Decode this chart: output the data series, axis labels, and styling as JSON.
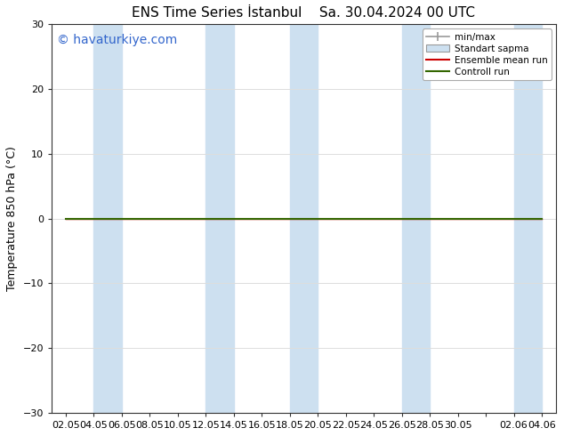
{
  "title_left": "ENS Time Series İstanbul",
  "title_right": "Sa. 30.04.2024 00 UTC",
  "ylabel": "Temperature 850 hPa (°C)",
  "watermark": "© havaturkiye.com",
  "ylim": [
    -30,
    30
  ],
  "yticks": [
    -30,
    -20,
    -10,
    0,
    10,
    20,
    30
  ],
  "xtick_labels": [
    "02.05",
    "04.05",
    "06.05",
    "08.05",
    "10.05",
    "12.05",
    "14.05",
    "16.05",
    "18.05",
    "20.05",
    "22.05",
    "24.05",
    "26.05",
    "28.05",
    "30.05",
    "",
    "02.06",
    "04.06"
  ],
  "background_color": "#ffffff",
  "plot_bg_color": "#ffffff",
  "shaded_band_color": "#cde0f0",
  "control_run_color": "#336600",
  "ensemble_mean_color": "#cc0000",
  "min_max_color": "#999999",
  "legend_labels": [
    "min/max",
    "Standart sapma",
    "Ensemble mean run",
    "Controll run"
  ],
  "shaded_ranges": [
    [
      1,
      2
    ],
    [
      5,
      6
    ],
    [
      8,
      9
    ],
    [
      12,
      13
    ],
    [
      16,
      17
    ]
  ],
  "title_fontsize": 11,
  "watermark_color": "#3366cc",
  "watermark_fontsize": 10,
  "grid_color": "#dddddd",
  "spine_color": "#333333",
  "tick_label_fontsize": 8,
  "ylabel_fontsize": 9
}
